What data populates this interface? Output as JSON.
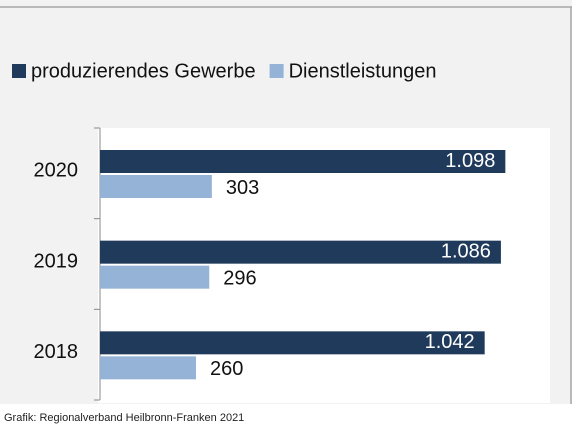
{
  "chart_data": {
    "type": "bar",
    "orientation": "horizontal",
    "categories": [
      "2020",
      "2019",
      "2018"
    ],
    "series": [
      {
        "name": "produzierendes Gewerbe",
        "color": "#203a5c",
        "values": [
          1098,
          1086,
          1042
        ],
        "value_labels": [
          "1.098",
          "1.086",
          "1.042"
        ]
      },
      {
        "name": "Dienstleistungen",
        "color": "#95b3d7",
        "values": [
          303,
          296,
          260
        ]
      }
    ],
    "xlim": [
      0,
      1200
    ],
    "source": "Grafik: Regionalverband Heilbronn-Franken 2021"
  }
}
